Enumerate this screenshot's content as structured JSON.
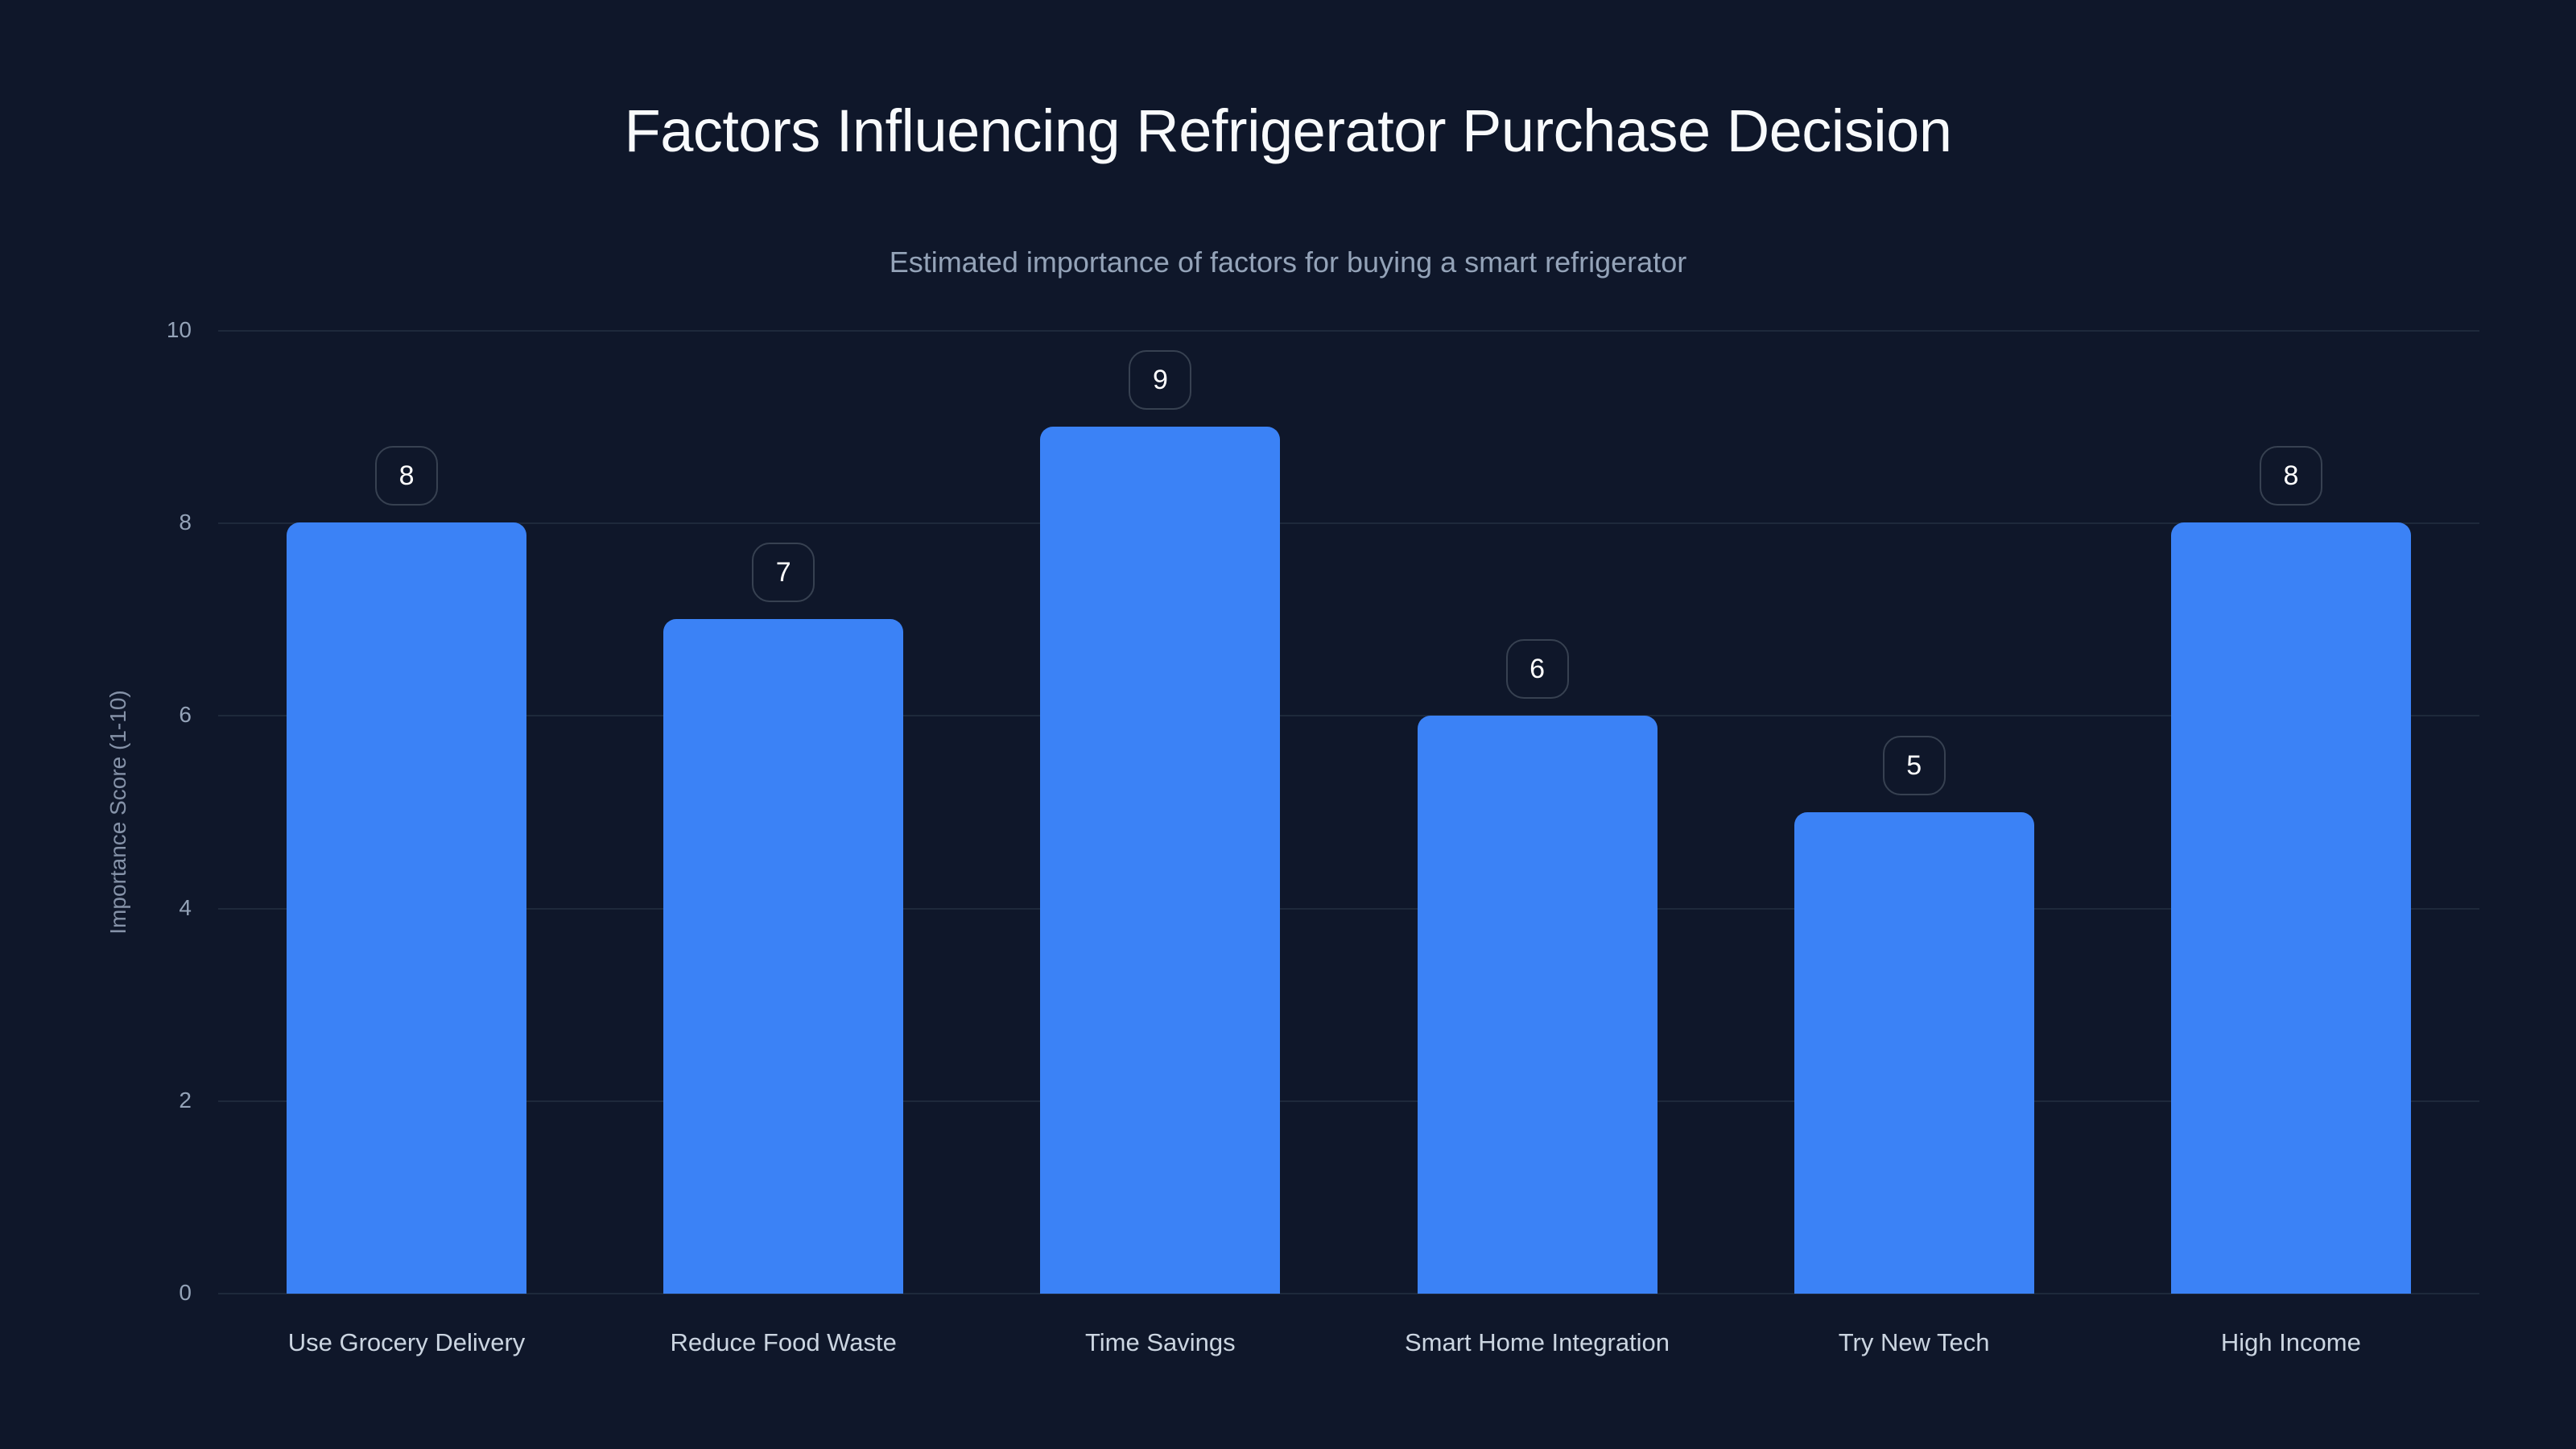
{
  "chart_data": {
    "type": "bar",
    "title": "Factors Influencing Refrigerator Purchase Decision",
    "subtitle": "Estimated importance of factors for buying a smart refrigerator",
    "xlabel": "",
    "ylabel": "Importance Score (1-10)",
    "categories": [
      "Use Grocery Delivery",
      "Reduce Food Waste",
      "Time Savings",
      "Smart Home Integration",
      "Try New Tech",
      "High Income"
    ],
    "values": [
      8,
      7,
      9,
      6,
      5,
      8
    ],
    "ylim": [
      0,
      10
    ],
    "yticks": [
      "0",
      "2",
      "4",
      "6",
      "8",
      "10"
    ],
    "grid": true,
    "legend": null,
    "data_labels": true
  },
  "colors": {
    "background": "#0F172A",
    "bar": "#3B82F6",
    "gridline": "#1E293B",
    "title": "#F8FAFC",
    "subtitle": "#94A3B8",
    "axis_text": "#94A3B8",
    "category_text": "#CBD5E1",
    "badge_border": "#374151"
  }
}
